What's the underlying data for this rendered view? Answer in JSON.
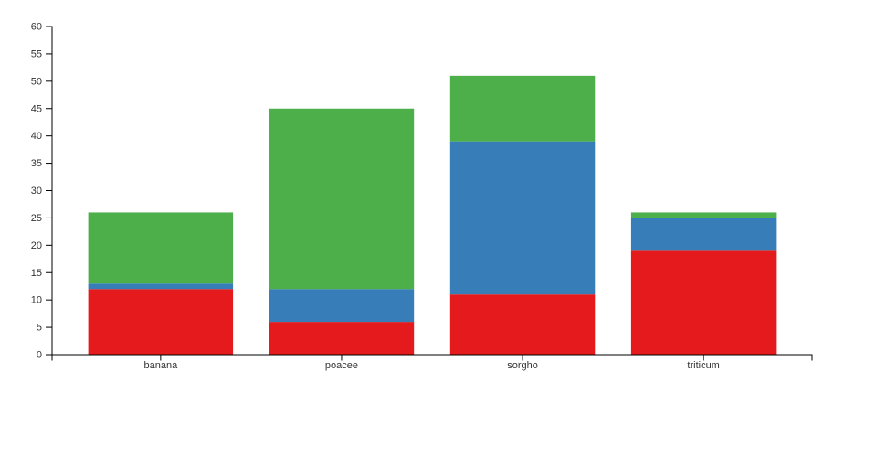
{
  "chart_data": {
    "type": "bar",
    "stacked": true,
    "title": "",
    "xlabel": "",
    "ylabel": "",
    "categories": [
      "banana",
      "poacee",
      "sorgho",
      "triticum"
    ],
    "series": [
      {
        "name": "red",
        "color": "#e41a1c",
        "values": [
          12,
          6,
          11,
          19
        ]
      },
      {
        "name": "blue",
        "color": "#377eb8",
        "values": [
          1,
          6,
          28,
          6
        ]
      },
      {
        "name": "green",
        "color": "#4daf4a",
        "values": [
          13,
          33,
          12,
          1
        ]
      }
    ],
    "stack_totals": [
      26,
      45,
      51,
      26
    ],
    "ylim": [
      0,
      60
    ],
    "ytick_step": 5,
    "yticks": [
      0,
      5,
      10,
      15,
      20,
      25,
      30,
      35,
      40,
      45,
      50,
      55,
      60
    ],
    "grid": false,
    "legend": "none",
    "background_color": "#ffffff",
    "axis_color": "#000000",
    "tick_label_color": "#333333"
  }
}
